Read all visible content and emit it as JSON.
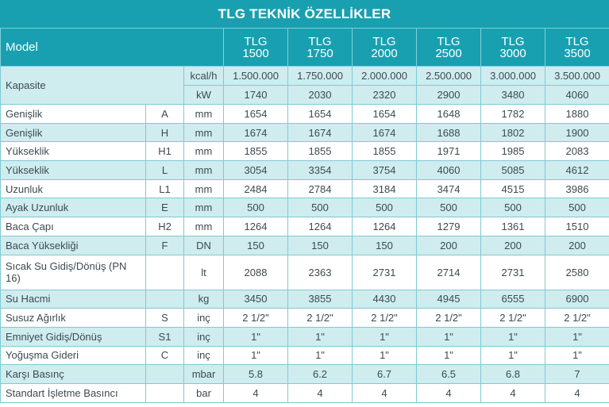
{
  "title": "TLG TEKNİK ÖZELLİKLER",
  "header": {
    "model_label": "Model",
    "models": [
      {
        "line1": "TLG",
        "line2": "1500"
      },
      {
        "line1": "TLG",
        "line2": "1750"
      },
      {
        "line1": "TLG",
        "line2": "2000"
      },
      {
        "line1": "TLG",
        "line2": "2500"
      },
      {
        "line1": "TLG",
        "line2": "3000"
      },
      {
        "line1": "TLG",
        "line2": "3500"
      }
    ]
  },
  "capacity": {
    "label": "Kapasite",
    "rows": [
      {
        "unit": "kcal/h",
        "values": [
          "1.500.000",
          "1.750.000",
          "2.000.000",
          "2.500.000",
          "3.000.000",
          "3.500.000"
        ]
      },
      {
        "unit": "kW",
        "values": [
          "1740",
          "2030",
          "2320",
          "2900",
          "3480",
          "4060"
        ]
      }
    ]
  },
  "rows": [
    {
      "label": "Genişlik",
      "code": "A",
      "unit": "mm",
      "values": [
        "1654",
        "1654",
        "1654",
        "1648",
        "1782",
        "1880"
      ]
    },
    {
      "label": "Genişlik",
      "code": "H",
      "unit": "mm",
      "values": [
        "1674",
        "1674",
        "1674",
        "1688",
        "1802",
        "1900"
      ]
    },
    {
      "label": "Yükseklik",
      "code": "H1",
      "unit": "mm",
      "values": [
        "1855",
        "1855",
        "1855",
        "1971",
        "1985",
        "2083"
      ]
    },
    {
      "label": "Yükseklik",
      "code": "L",
      "unit": "mm",
      "values": [
        "3054",
        "3354",
        "3754",
        "4060",
        "5085",
        "4612"
      ]
    },
    {
      "label": "Uzunluk",
      "code": "L1",
      "unit": "mm",
      "values": [
        "2484",
        "2784",
        "3184",
        "3474",
        "4515",
        "3986"
      ]
    },
    {
      "label": "Ayak Uzunluk",
      "code": "E",
      "unit": "mm",
      "values": [
        "500",
        "500",
        "500",
        "500",
        "500",
        "500"
      ]
    },
    {
      "label": "Baca Çapı",
      "code": "H2",
      "unit": "mm",
      "values": [
        "1264",
        "1264",
        "1264",
        "1279",
        "1361",
        "1510"
      ]
    },
    {
      "label": "Baca Yüksekliği",
      "code": "F",
      "unit": "DN",
      "values": [
        "150",
        "150",
        "150",
        "200",
        "200",
        "200"
      ]
    },
    {
      "label": "Sıcak Su Gidiş/Dönüş (PN 16)",
      "code": "",
      "unit": "lt",
      "values": [
        "2088",
        "2363",
        "2731",
        "2714",
        "2731",
        "2580"
      ],
      "tall": true
    },
    {
      "label": "Su Hacmi",
      "code": "",
      "unit": "kg",
      "values": [
        "3450",
        "3855",
        "4430",
        "4945",
        "6555",
        "6900"
      ]
    },
    {
      "label": "Susuz Ağırlık",
      "code": "S",
      "unit": "inç",
      "values": [
        "2 1/2\"",
        "2 1/2\"",
        "2 1/2\"",
        "2 1/2\"",
        "2 1/2\"",
        "2 1/2\""
      ]
    },
    {
      "label": "Emniyet Gidiş/Dönüş",
      "code": "S1",
      "unit": "inç",
      "values": [
        "1\"",
        "1\"",
        "1\"",
        "1\"",
        "1\"",
        "1\""
      ]
    },
    {
      "label": "Yoğuşma Gideri",
      "code": "C",
      "unit": "inç",
      "values": [
        "1\"",
        "1\"",
        "1\"",
        "1\"",
        "1\"",
        "1\""
      ]
    },
    {
      "label": "Karşı Basınç",
      "code": "",
      "unit": "mbar",
      "values": [
        "5.8",
        "6.2",
        "6.7",
        "6.5",
        "6.8",
        "7"
      ]
    },
    {
      "label": "Standart İşletme Basıncı",
      "code": "",
      "unit": "bar",
      "values": [
        "4",
        "4",
        "4",
        "4",
        "4",
        "4"
      ]
    }
  ],
  "colors": {
    "header_bg": "#19a0b0",
    "stripe_bg": "#cfecef",
    "border": "#7fcad3"
  }
}
